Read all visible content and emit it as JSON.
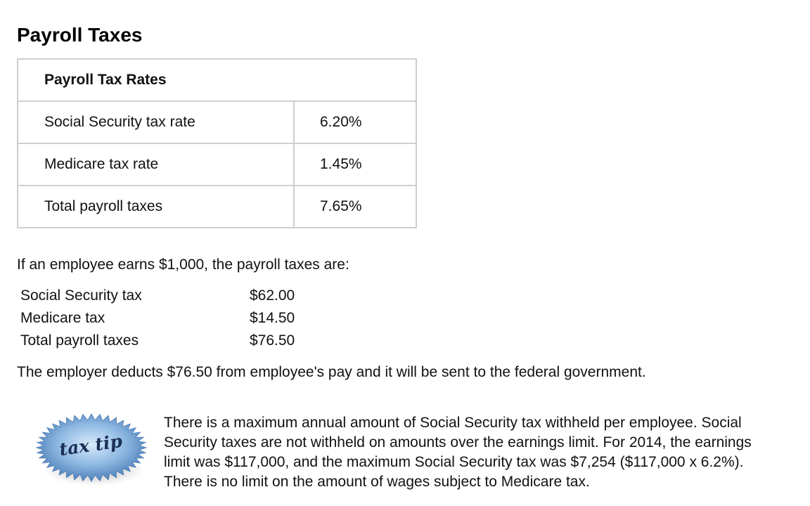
{
  "title": "Payroll Taxes",
  "rates_table": {
    "header": "Payroll Tax Rates",
    "rows": [
      {
        "label": "Social Security tax rate",
        "value": "6.20%"
      },
      {
        "label": "Medicare tax rate",
        "value": "1.45%"
      },
      {
        "label": "Total payroll taxes",
        "value": "7.65%"
      }
    ]
  },
  "intro": "If an employee earns $1,000, the payroll taxes are:",
  "example": [
    {
      "label": "Social Security tax",
      "value": "$62.00"
    },
    {
      "label": "Medicare tax",
      "value": "$14.50"
    },
    {
      "label": "Total payroll taxes",
      "value": "$76.50"
    }
  ],
  "deduction_text": "The employer deducts $76.50 from employee's pay and it will be sent to the federal government.",
  "tax_tip": {
    "badge_text": "tax tip",
    "badge_color": "#6f9fd0",
    "lines": [
      "There is a maximum annual amount of Social Security tax withheld per employee. Social",
      "Security taxes are not withheld on amounts over the earnings limit. For 2014, the earnings",
      "limit was $117,000, and the maximum Social Security tax was $7,254 ($117,000 x 6.2%).",
      "There is no limit on the amount of wages subject to Medicare tax."
    ]
  }
}
